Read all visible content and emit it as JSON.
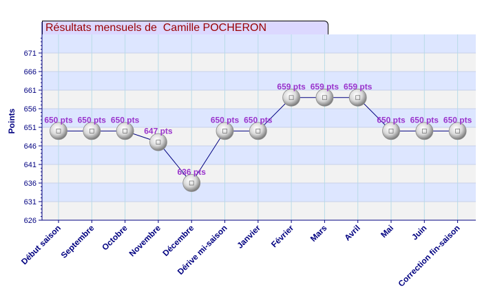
{
  "title": "Résultats mensuels de  Camille POCHERON",
  "colors": {
    "band_light": "#f2f2f2",
    "band_blue": "#dde6ff",
    "line": "#000080",
    "label": "#9933cc",
    "title_bg": "#dcd8ff",
    "title_text": "#990000"
  },
  "chart_data": {
    "type": "line",
    "ylabel": "Points",
    "xlabel": "",
    "ylim": [
      626,
      676
    ],
    "yticks": [
      626,
      631,
      636,
      641,
      646,
      651,
      656,
      661,
      666,
      671
    ],
    "categories": [
      "Début saison",
      "Septembre",
      "Octobre",
      "Novembre",
      "Décembre",
      "Dérive mi-saison",
      "Janvier",
      "Février",
      "Mars",
      "Avril",
      "Mai",
      "Juin",
      "Correction fin-saison"
    ],
    "values": [
      650,
      650,
      650,
      647,
      636,
      650,
      650,
      659,
      659,
      659,
      650,
      650,
      650
    ],
    "data_labels": [
      "650 pts",
      "650 pts",
      "650 pts",
      "647 pts",
      "636 pts",
      "650 pts",
      "650 pts",
      "659 pts",
      "659 pts",
      "659 pts",
      "650 pts",
      "650 pts",
      "650 pts"
    ],
    "grid": true
  }
}
